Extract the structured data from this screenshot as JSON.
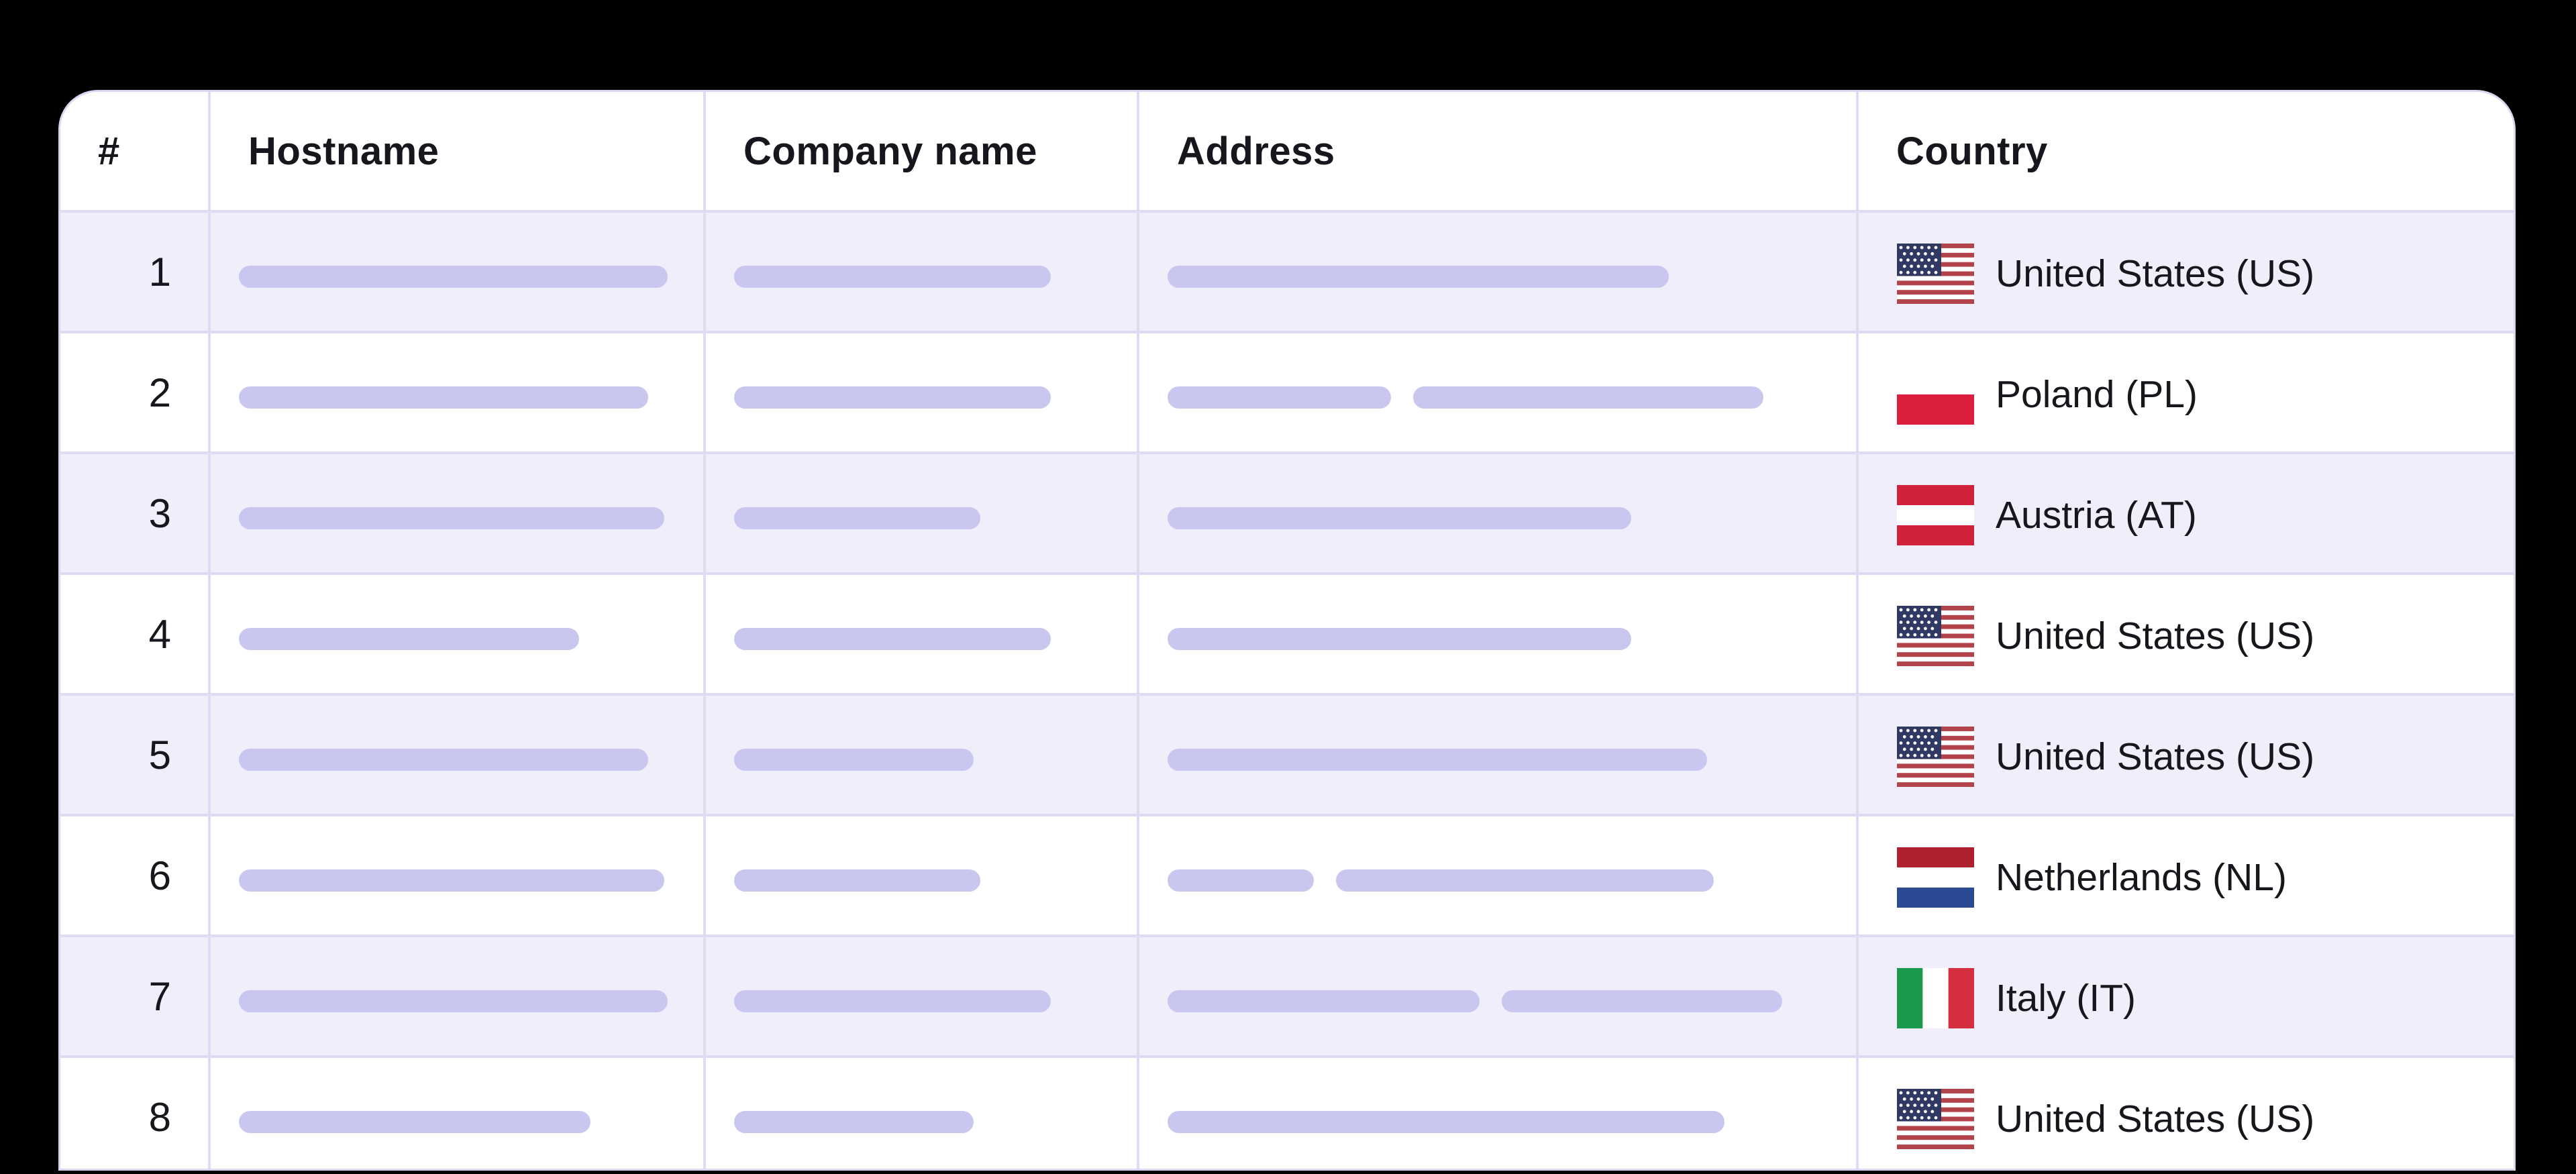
{
  "table": {
    "columns": [
      {
        "id": "index",
        "label": "#"
      },
      {
        "id": "hostname",
        "label": "Hostname"
      },
      {
        "id": "company",
        "label": "Company name"
      },
      {
        "id": "address",
        "label": "Address"
      },
      {
        "id": "country",
        "label": "Country"
      }
    ],
    "rows": [
      {
        "index": "1",
        "hostname_redacted": [
          639
        ],
        "company_redacted": [
          472
        ],
        "address_redacted": [
          747
        ],
        "country_name": "United States (US)",
        "country_flag": "us"
      },
      {
        "index": "2",
        "hostname_redacted": [
          610
        ],
        "company_redacted": [
          472
        ],
        "address_redacted": [
          333,
          522
        ],
        "country_name": "Poland (PL)",
        "country_flag": "pl"
      },
      {
        "index": "3",
        "hostname_redacted": [
          634
        ],
        "company_redacted": [
          367
        ],
        "address_redacted": [
          691
        ],
        "country_name": "Austria (AT)",
        "country_flag": "at"
      },
      {
        "index": "4",
        "hostname_redacted": [
          507
        ],
        "company_redacted": [
          472
        ],
        "address_redacted": [
          691
        ],
        "country_name": "United States (US)",
        "country_flag": "us"
      },
      {
        "index": "5",
        "hostname_redacted": [
          610
        ],
        "company_redacted": [
          357
        ],
        "address_redacted": [
          804
        ],
        "country_name": "United States (US)",
        "country_flag": "us"
      },
      {
        "index": "6",
        "hostname_redacted": [
          634
        ],
        "company_redacted": [
          367
        ],
        "address_redacted": [
          218,
          563
        ],
        "country_name": "Netherlands (NL)",
        "country_flag": "nl"
      },
      {
        "index": "7",
        "hostname_redacted": [
          639
        ],
        "company_redacted": [
          472
        ],
        "address_redacted": [
          465,
          418
        ],
        "country_name": "Italy (IT)",
        "country_flag": "it"
      },
      {
        "index": "8",
        "hostname_redacted": [
          524
        ],
        "company_redacted": [
          357
        ],
        "address_redacted": [
          830
        ],
        "country_name": "United States (US)",
        "country_flag": "us"
      }
    ]
  },
  "colors": {
    "page_background": "#000000",
    "card_background": "#ffffff",
    "row_background": "#ffffff",
    "row_alt_background": "#efeefa",
    "grid_line": "#dedbf3",
    "redaction_pill": "#c9c6f0",
    "text": "#16161d",
    "flag_palettes": {
      "us": {
        "canton": "#2f3963",
        "stripe_red": "#b2434b",
        "white": "#ffffff"
      },
      "pl": {
        "white": "#ffffff",
        "red": "#dc1e3e"
      },
      "at": {
        "red": "#d0203a",
        "white": "#ffffff"
      },
      "nl": {
        "red": "#ae2030",
        "white": "#ffffff",
        "blue": "#2b4a94"
      },
      "it": {
        "green": "#1b9a4d",
        "white": "#ffffff",
        "red": "#d52f3f"
      }
    }
  }
}
